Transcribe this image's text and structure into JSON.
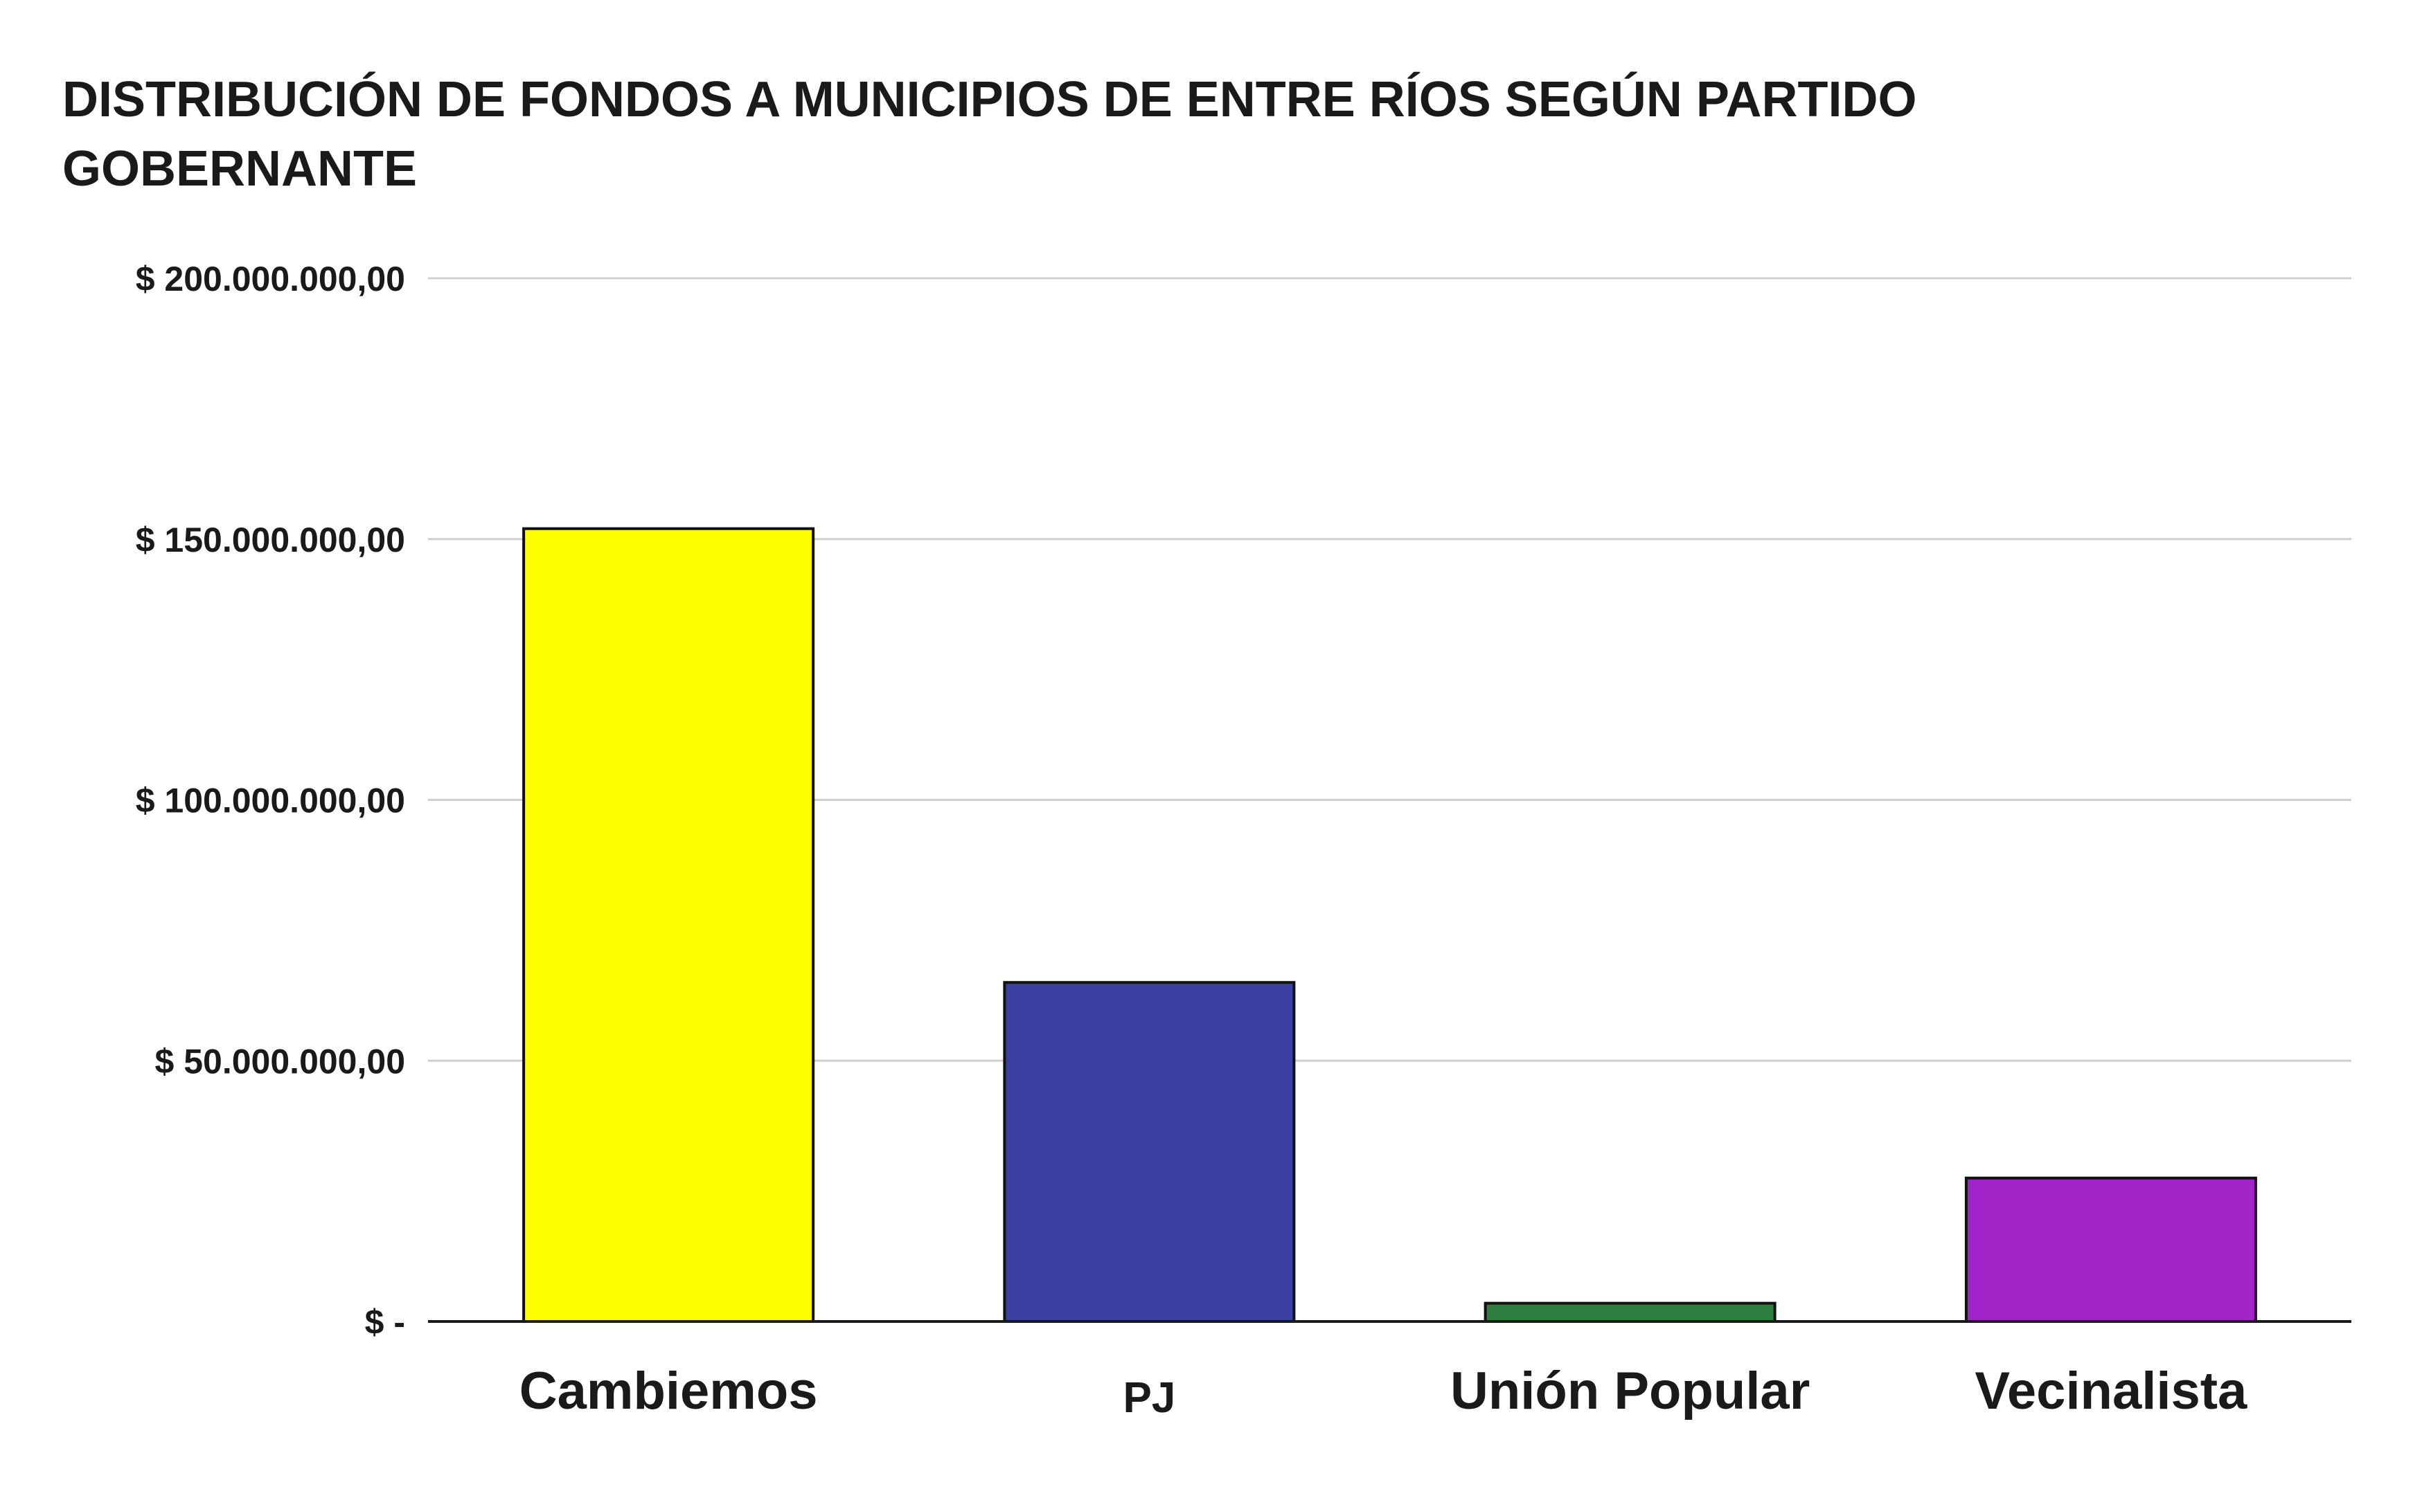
{
  "chart_data": {
    "type": "bar",
    "title_lines": [
      "DISTRIBUCIÓN DE FONDOS A MUNICIPIOS DE ENTRE RÍOS SEGÚN PARTIDO",
      "GOBERNANTE"
    ],
    "categories": [
      "Cambiemos",
      "PJ",
      "Unión Popular",
      "Vecinalista"
    ],
    "values": [
      152000000,
      65000000,
      3500000,
      27500000
    ],
    "colors": [
      "#ffff00",
      "#3a41a3",
      "#2e7d3e",
      "#a024c8"
    ],
    "ylim": [
      0,
      200000000
    ],
    "yticks": [
      {
        "value": 0,
        "label": "$ -"
      },
      {
        "value": 50000000,
        "label": "$ 50.000.000,00"
      },
      {
        "value": 100000000,
        "label": "$ 100.000.000,00"
      },
      {
        "value": 150000000,
        "label": "$ 150.000.000,00"
      },
      {
        "value": 200000000,
        "label": "$ 200.000.000,00"
      }
    ],
    "grid": true,
    "legend": "none"
  }
}
